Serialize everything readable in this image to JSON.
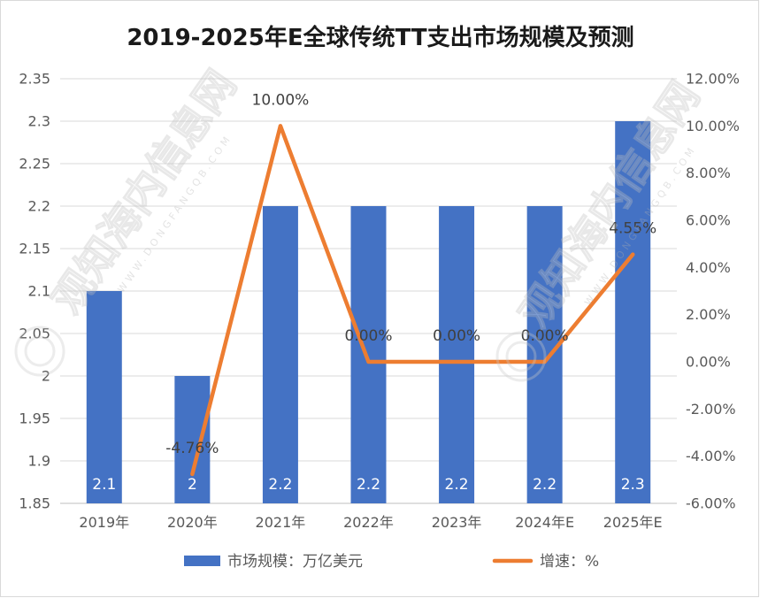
{
  "chart_data": {
    "type": "bar",
    "title": "2019-2025年E全球传统TT支出市场规模及预测",
    "categories": [
      "2019年",
      "2020年",
      "2021年",
      "2022年",
      "2023年",
      "2024年E",
      "2025年E"
    ],
    "series": [
      {
        "name": "市场规模：万亿美元",
        "type": "bar",
        "axis": "left",
        "color": "#4472C4",
        "values": [
          2.1,
          2,
          2.2,
          2.2,
          2.2,
          2.2,
          2.3
        ],
        "labels": [
          "2.1",
          "2",
          "2.2",
          "2.2",
          "2.2",
          "2.2",
          "2.3"
        ]
      },
      {
        "name": "增速：%",
        "type": "line",
        "axis": "right",
        "color": "#ED7D31",
        "values": [
          null,
          -4.76,
          10,
          0,
          0,
          0,
          4.55
        ],
        "labels": [
          null,
          "-4.76%",
          "10.00%",
          "0.00%",
          "0.00%",
          "0.00%",
          "4.55%"
        ]
      }
    ],
    "ylim": [
      1.85,
      2.35
    ],
    "y_ticks": [
      {
        "value": 1.85,
        "label": "1.85"
      },
      {
        "value": 1.9,
        "label": "1.9"
      },
      {
        "value": 1.95,
        "label": "1.95"
      },
      {
        "value": 2,
        "label": "2"
      },
      {
        "value": 2.05,
        "label": "2.05"
      },
      {
        "value": 2.1,
        "label": "2.1"
      },
      {
        "value": 2.15,
        "label": "2.15"
      },
      {
        "value": 2.2,
        "label": "2.2"
      },
      {
        "value": 2.25,
        "label": "2.25"
      },
      {
        "value": 2.3,
        "label": "2.3"
      },
      {
        "value": 2.35,
        "label": "2.35"
      }
    ],
    "y2lim": [
      -6,
      12
    ],
    "y2_ticks": [
      {
        "value": -6,
        "label": "-6.00%"
      },
      {
        "value": -4,
        "label": "-4.00%"
      },
      {
        "value": -2,
        "label": "-2.00%"
      },
      {
        "value": 0,
        "label": "0.00%"
      },
      {
        "value": 2,
        "label": "2.00%"
      },
      {
        "value": 4,
        "label": "4.00%"
      },
      {
        "value": 6,
        "label": "6.00%"
      },
      {
        "value": 8,
        "label": "8.00%"
      },
      {
        "value": 10,
        "label": "10.00%"
      },
      {
        "value": 12,
        "label": "12.00%"
      }
    ],
    "grid": true,
    "legend": "bottom"
  },
  "watermark": {
    "text": "观知海内信息网",
    "url": "WWW.DONGFANGQB.COM"
  }
}
